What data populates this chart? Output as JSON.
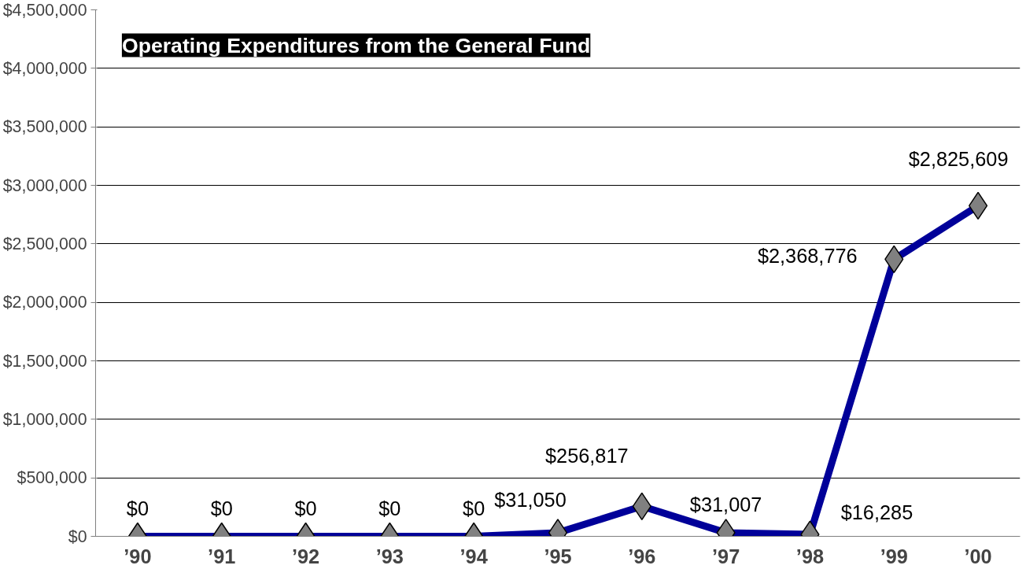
{
  "chart_data": {
    "type": "line",
    "title": "Operating Expenditures from the General Fund",
    "categories": [
      "’90",
      "’91",
      "’92",
      "’93",
      "’94",
      "’95",
      "’96",
      "’97",
      "’98",
      "’99",
      "’00"
    ],
    "series": [
      {
        "color": "#000099",
        "values": [
          0,
          0,
          0,
          0,
          0,
          31050,
          256817,
          31007,
          16285,
          2368776,
          2825609
        ],
        "value_labels": [
          "$0",
          "$0",
          "$0",
          "$0",
          "$0",
          "$31,050",
          "$256,817",
          "$31,007",
          "$16,285",
          "$2,368,776",
          "$2,825,609"
        ]
      }
    ],
    "ylim": [
      0,
      4500000
    ],
    "yticks": [
      {
        "value": 0,
        "label": "$0"
      },
      {
        "value": 500000,
        "label": "$500,000"
      },
      {
        "value": 1000000,
        "label": "$1,000,000"
      },
      {
        "value": 1500000,
        "label": "$1,500,000"
      },
      {
        "value": 2000000,
        "label": "$2,000,000"
      },
      {
        "value": 2500000,
        "label": "$2,500,000"
      },
      {
        "value": 3000000,
        "label": "$3,000,000"
      },
      {
        "value": 3500000,
        "label": "$3,500,000"
      },
      {
        "value": 4000000,
        "label": "$4,000,000"
      },
      {
        "value": 4500000,
        "label": "$4,500,000"
      }
    ],
    "grid": "y",
    "marker": "diamond",
    "line_style": "solid"
  }
}
